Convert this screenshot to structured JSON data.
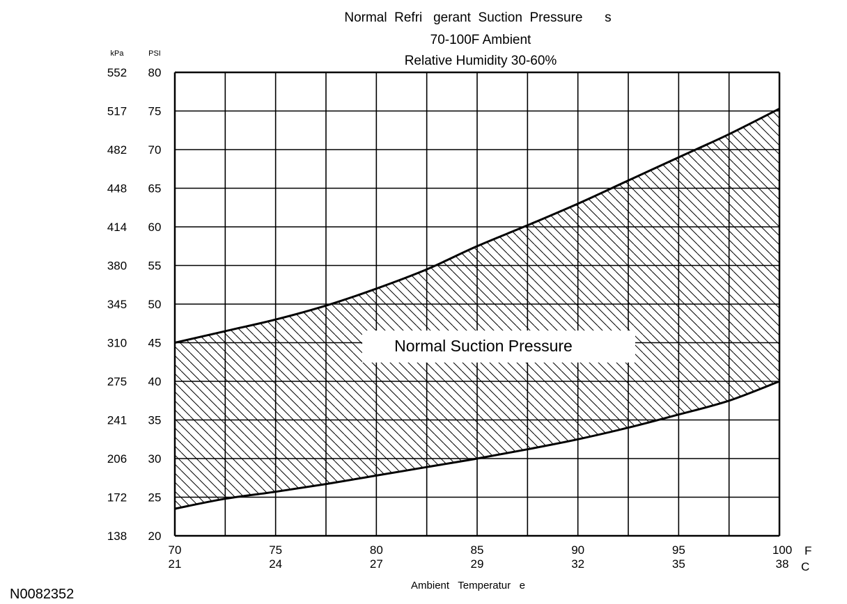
{
  "chart_data": {
    "type": "area",
    "title_lines": [
      "Normal  Refri   gerant  Suction  Pressure      s",
      "70-100F Ambient",
      "Relative Humidity 30-60%"
    ],
    "annotation": "Normal Suction Pressure",
    "xlabel": "Ambient   Temperatur   e",
    "x_unit_f": "F",
    "x_unit_c": "C",
    "y_unit_kpa": "kPa",
    "y_unit_psi": "PSI",
    "x_ticks": [
      {
        "f": "70",
        "c": "21",
        "value": 70
      },
      {
        "f": "75",
        "c": "24",
        "value": 75
      },
      {
        "f": "80",
        "c": "27",
        "value": 80
      },
      {
        "f": "85",
        "c": "29",
        "value": 85
      },
      {
        "f": "90",
        "c": "32",
        "value": 90
      },
      {
        "f": "95",
        "c": "35",
        "value": 95
      },
      {
        "f": "100",
        "c": "38",
        "value": 100
      }
    ],
    "y_ticks": [
      {
        "psi": "80",
        "kpa": "552",
        "value": 80
      },
      {
        "psi": "75",
        "kpa": "517",
        "value": 75
      },
      {
        "psi": "70",
        "kpa": "482",
        "value": 70
      },
      {
        "psi": "65",
        "kpa": "448",
        "value": 65
      },
      {
        "psi": "60",
        "kpa": "414",
        "value": 60
      },
      {
        "psi": "55",
        "kpa": "380",
        "value": 55
      },
      {
        "psi": "50",
        "kpa": "345",
        "value": 50
      },
      {
        "psi": "45",
        "kpa": "310",
        "value": 45
      },
      {
        "psi": "40",
        "kpa": "275",
        "value": 40
      },
      {
        "psi": "35",
        "kpa": "241",
        "value": 35
      },
      {
        "psi": "30",
        "kpa": "206",
        "value": 30
      },
      {
        "psi": "25",
        "kpa": "172",
        "value": 25
      },
      {
        "psi": "20",
        "kpa": "138",
        "value": 20
      }
    ],
    "xlim": [
      70,
      100
    ],
    "ylim": [
      20,
      80
    ],
    "grid": true,
    "upper_bound": {
      "x": [
        70,
        72.5,
        75,
        77.5,
        80,
        82.5,
        85,
        87.5,
        90,
        92.5,
        95,
        97.5,
        100
      ],
      "y": [
        45,
        46.5,
        48,
        49.8,
        52,
        54.5,
        57.5,
        60.2,
        63,
        66,
        69,
        72,
        75.3
      ]
    },
    "lower_bound": {
      "x": [
        70,
        72.5,
        75,
        77.5,
        80,
        82.5,
        85,
        87.5,
        90,
        92.5,
        95,
        97.5,
        100
      ],
      "y": [
        23.5,
        24.8,
        25.7,
        26.7,
        27.8,
        28.9,
        30,
        31.2,
        32.5,
        34,
        35.7,
        37.5,
        40
      ]
    }
  },
  "figure_id": "N0082352"
}
